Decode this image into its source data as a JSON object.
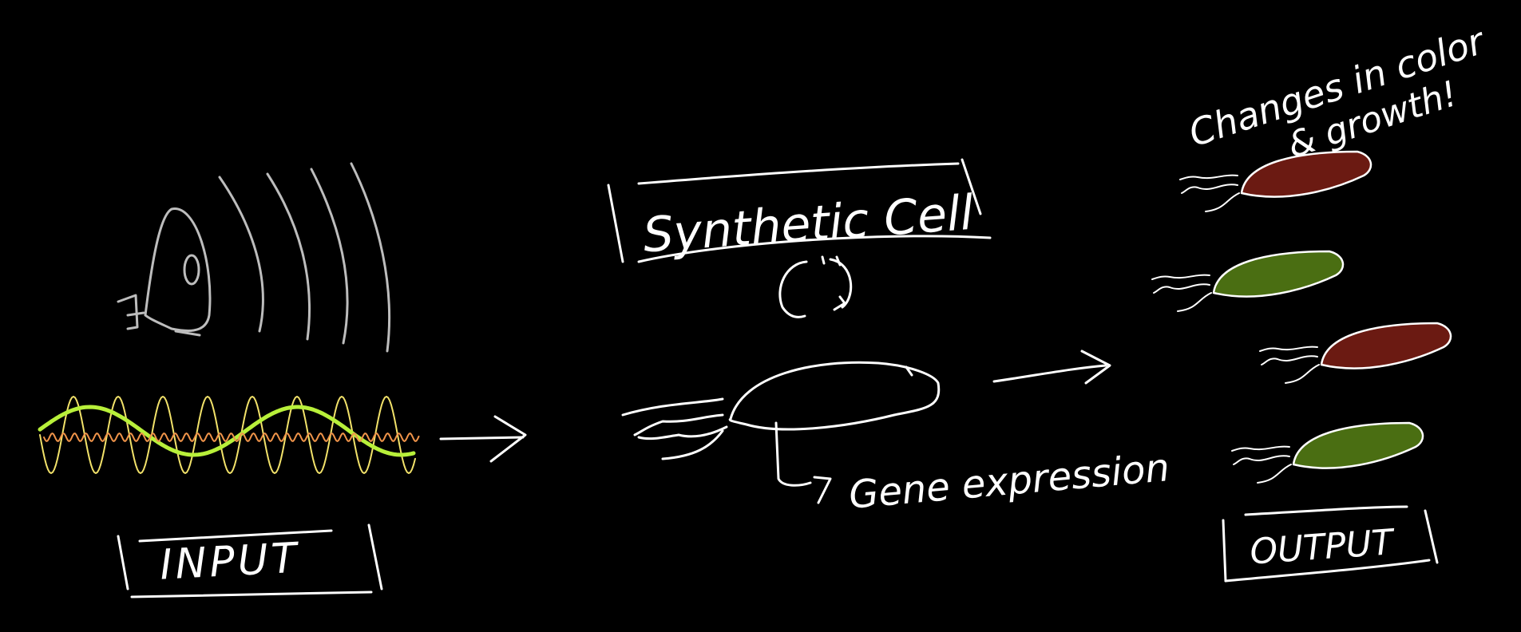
{
  "labels": {
    "input": "INPUT",
    "synthetic_cell": "Synthetic Cell",
    "gene_expression": "Gene expression",
    "output": "OUTPUT",
    "annotation_line1": "Changes in color",
    "annotation_line2": "& growth!"
  },
  "icons": {
    "speaker": "speaker-icon",
    "sound_waves": "sound-waves-icon",
    "signal_waves": "signal-waves-icon",
    "cell": "cell-icon",
    "cycle": "cycle-arrows-icon"
  },
  "colors": {
    "background": "#000000",
    "stroke": "#ffffff",
    "speaker": "#bdbdbd",
    "wave_yellow": "#f2e26a",
    "wave_green": "#b8f03a",
    "wave_orange": "#f0944a",
    "cell_red": "#6b1a12",
    "cell_green": "#4a6e12"
  },
  "output_cells": [
    {
      "color": "red"
    },
    {
      "color": "green"
    },
    {
      "color": "red"
    },
    {
      "color": "green"
    }
  ]
}
